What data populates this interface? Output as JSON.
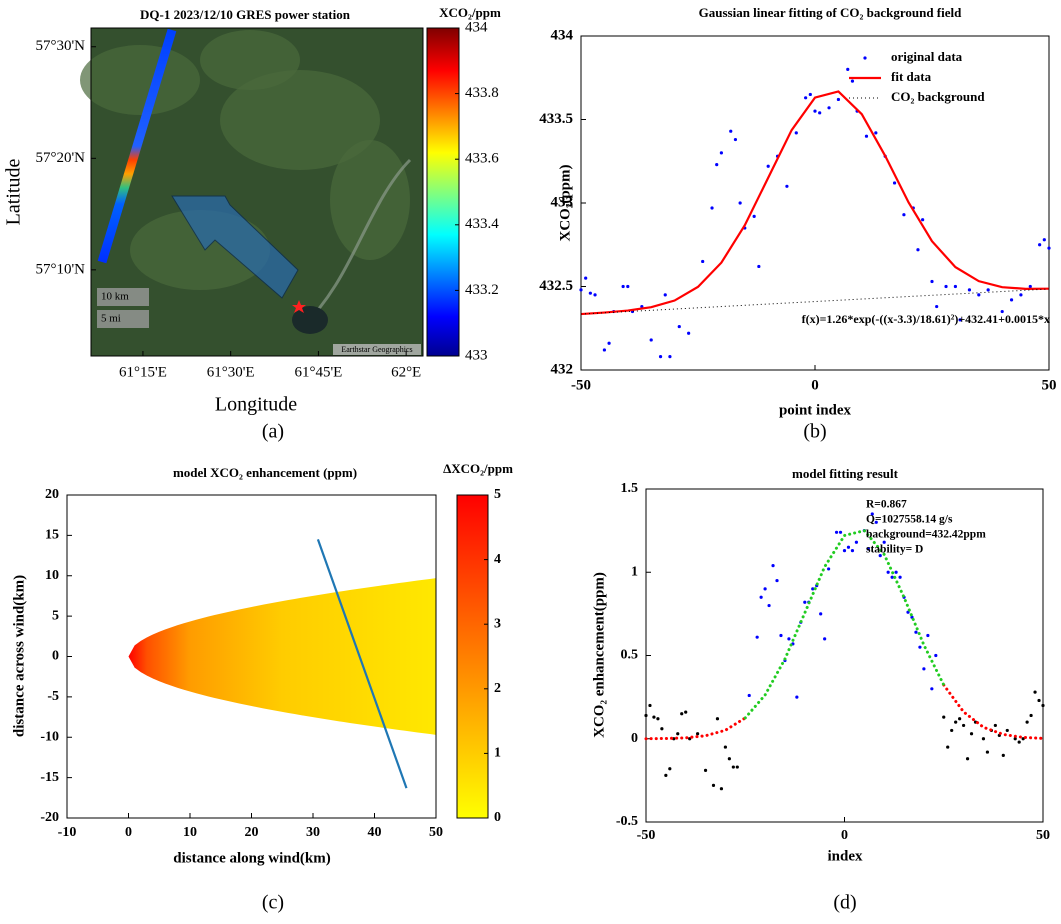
{
  "chart_data": [
    {
      "type": "map",
      "title": "DQ-1 2023/12/10 GRES power station",
      "colorbar_label": "XCO₂/ppm",
      "clim": [
        433,
        434
      ],
      "cticks": [
        433,
        433.2,
        433.4,
        433.6,
        433.8,
        434
      ],
      "colormap": "jet",
      "xlim": [
        61.102,
        62.048
      ],
      "xticks": [
        {
          "value": 61.25,
          "label": "61°15'E"
        },
        {
          "value": 61.5,
          "label": "61°30'E"
        },
        {
          "value": 61.75,
          "label": "61°45'E"
        },
        {
          "value": 62.0,
          "label": "62°E"
        }
      ],
      "ylim": [
        57.038,
        57.528
      ],
      "yticks": [
        {
          "value": 57.1667,
          "label": "57°10'N"
        },
        {
          "value": 57.3333,
          "label": "57°20'N"
        },
        {
          "value": 57.5,
          "label": "57°30'N"
        }
      ],
      "xlabel": "Longitude",
      "ylabel": "Latitude",
      "annotations": [
        "10 km",
        "5 mi",
        "Earthstar Geographics"
      ],
      "panel_label": "(a)"
    },
    {
      "type": "scatter",
      "title": "Gaussian linear fitting of CO₂ background field",
      "xlabel": "point index",
      "ylabel": "XCO₂(ppm)",
      "xlim": [
        -50,
        50
      ],
      "xticks": [
        -50,
        0,
        50
      ],
      "ylim": [
        432,
        434
      ],
      "yticks": [
        432,
        432.5,
        433,
        433.5,
        434
      ],
      "legend": "upper right",
      "annotation": "f(x)=1.26*exp(-((x-3.3)/18.61)²)+432.41+0.0015*x",
      "panel_label": "(b)",
      "series": [
        {
          "name": "original data",
          "color": "#0000ff",
          "style": "points",
          "x": [
            -50,
            -49,
            -48,
            -47,
            -45,
            -44,
            -43,
            -41,
            -40,
            -39,
            -37,
            -35,
            -33,
            -32,
            -31,
            -29,
            -27,
            -24,
            -22,
            -21,
            -20,
            -18,
            -17,
            -16,
            -15,
            -13,
            -12,
            -10,
            -8,
            -6,
            -4,
            -2,
            -1,
            0,
            1,
            3,
            5,
            7,
            8,
            9,
            11,
            13,
            15,
            17,
            19,
            21,
            22,
            23,
            25,
            26,
            28,
            30,
            31,
            33,
            35,
            37,
            40,
            42,
            44,
            46,
            48,
            49,
            50
          ],
          "values": [
            432.48,
            432.55,
            432.46,
            432.45,
            432.12,
            432.16,
            432.35,
            432.5,
            432.5,
            432.35,
            432.38,
            432.18,
            432.08,
            432.45,
            432.08,
            432.26,
            432.22,
            432.65,
            432.97,
            433.23,
            433.3,
            433.43,
            433.38,
            433.0,
            432.85,
            432.92,
            432.62,
            433.22,
            433.28,
            433.1,
            433.42,
            433.63,
            433.65,
            433.55,
            433.54,
            433.57,
            433.62,
            433.8,
            433.73,
            433.55,
            433.4,
            433.42,
            433.28,
            433.12,
            432.93,
            432.97,
            432.72,
            432.9,
            432.53,
            432.38,
            432.5,
            432.5,
            432.3,
            432.48,
            432.45,
            432.48,
            432.35,
            432.42,
            432.45,
            432.5,
            432.75,
            432.78,
            432.73
          ]
        },
        {
          "name": "fit data",
          "color": "#ff0000",
          "style": "line",
          "x": [
            -50,
            -45,
            -40,
            -35,
            -30,
            -25,
            -20,
            -15,
            -10,
            -5,
            0,
            5,
            10,
            15,
            20,
            25,
            30,
            35,
            40,
            45,
            50
          ],
          "values": [
            432.335,
            432.344,
            432.356,
            432.376,
            432.416,
            432.498,
            432.643,
            432.867,
            433.151,
            433.436,
            433.631,
            433.668,
            433.532,
            433.282,
            433.003,
            432.771,
            432.616,
            432.532,
            432.496,
            432.486,
            432.487
          ]
        },
        {
          "name": "CO₂ background",
          "color": "#000000",
          "style": "dotted",
          "x": [
            -50,
            50
          ],
          "values": [
            432.335,
            432.485
          ]
        }
      ]
    },
    {
      "type": "heatmap",
      "title": "model XCO₂ enhancement (ppm)",
      "colorbar_label": "ΔXCO₂/ppm",
      "clim": [
        0,
        5
      ],
      "cticks": [
        0,
        1,
        2,
        3,
        4,
        5
      ],
      "colormap": "autumn",
      "xlabel": "distance along wind(km)",
      "ylabel": "distance across wind(km)",
      "xlim": [
        -10,
        50
      ],
      "xticks": [
        -10,
        0,
        10,
        20,
        30,
        40,
        50
      ],
      "ylim": [
        -20,
        20
      ],
      "yticks": [
        -20,
        -15,
        -10,
        -5,
        0,
        5,
        10,
        15,
        20
      ],
      "panel_label": "(c)",
      "series": [
        {
          "color": "#1f77b4",
          "style": "line",
          "x": [
            30.8,
            45.2
          ],
          "values": [
            14.5,
            -16.3
          ]
        }
      ]
    },
    {
      "type": "scatter",
      "title": "model fitting result",
      "xlabel": "index",
      "ylabel": "XCO₂ enhancement(ppm)",
      "xlim": [
        -50,
        50
      ],
      "xticks": [
        -50,
        0,
        50
      ],
      "ylim": [
        -0.5,
        1.5
      ],
      "yticks": [
        -0.5,
        0,
        0.5,
        1,
        1.5
      ],
      "annotations": [
        "R=0.867",
        "Q=1027558.14 g/s",
        "background=432.42ppm",
        "stability= D"
      ],
      "panel_label": "(d)",
      "series": [
        {
          "color": "#000000",
          "style": "points",
          "x": [
            -50,
            -49,
            -48,
            -47,
            -46,
            -45,
            -44,
            -43,
            -42,
            -41,
            -40,
            -39,
            -37,
            -35,
            -33,
            -32,
            -31,
            -30,
            -29,
            -28,
            -27,
            25,
            26,
            27,
            28,
            29,
            30,
            31,
            32,
            33,
            35,
            36,
            37,
            38,
            39,
            40,
            41,
            43,
            44,
            45,
            46,
            47,
            48,
            49,
            50
          ],
          "values": [
            0.14,
            0.2,
            0.13,
            0.12,
            0.06,
            -0.22,
            -0.18,
            0.0,
            0.03,
            0.15,
            0.16,
            0.0,
            0.03,
            -0.19,
            -0.28,
            0.12,
            -0.3,
            -0.05,
            -0.12,
            -0.17,
            -0.17,
            0.13,
            -0.05,
            0.05,
            0.1,
            0.12,
            0.08,
            -0.12,
            0.03,
            0.1,
            0.0,
            -0.08,
            0.05,
            0.08,
            0.02,
            -0.1,
            0.05,
            0.0,
            -0.02,
            0.0,
            0.1,
            0.14,
            0.28,
            0.23,
            0.2
          ]
        },
        {
          "color": "#0000ff",
          "style": "points",
          "x": [
            -24,
            -22,
            -21,
            -20,
            -19,
            -18,
            -17,
            -16,
            -15,
            -14,
            -13,
            -12,
            -11,
            -10,
            -9,
            -8,
            -7,
            -6,
            -5,
            -4,
            -2,
            -1,
            0,
            1,
            2,
            3,
            5,
            6,
            7,
            8,
            9,
            10,
            11,
            12,
            13,
            14,
            15,
            16,
            17,
            18,
            19,
            20,
            21,
            22,
            23
          ],
          "values": [
            0.26,
            0.61,
            0.85,
            0.9,
            0.8,
            1.04,
            0.95,
            0.62,
            0.47,
            0.6,
            0.57,
            0.25,
            0.7,
            0.82,
            0.82,
            0.9,
            0.92,
            0.75,
            0.6,
            1.02,
            1.24,
            1.24,
            1.13,
            1.15,
            1.13,
            1.18,
            1.25,
            1.14,
            1.35,
            1.3,
            1.1,
            1.18,
            1.0,
            0.97,
            1.0,
            0.97,
            0.85,
            0.76,
            0.73,
            0.64,
            0.55,
            0.42,
            0.62,
            0.3,
            0.5
          ]
        },
        {
          "color": "#ff0000",
          "style": "dots",
          "x": [
            -50,
            -45,
            -40,
            -35,
            -30,
            -25,
            -20,
            -15,
            -10,
            -5,
            0,
            5,
            10,
            15,
            20,
            25,
            30,
            35,
            40,
            45,
            50
          ],
          "values": [
            0.0003,
            0.0015,
            0.0056,
            0.018,
            0.051,
            0.125,
            null,
            null,
            null,
            null,
            null,
            null,
            null,
            null,
            null,
            0.323,
            0.161,
            0.069,
            0.026,
            0.0083,
            0.0023
          ]
        },
        {
          "color": "#22cc22",
          "style": "dots",
          "x": [
            -25,
            -20,
            -15,
            -10,
            -5,
            0,
            5,
            10,
            15,
            20,
            25
          ],
          "values": [
            0.125,
            0.263,
            0.479,
            0.756,
            1.033,
            1.221,
            1.25,
            1.107,
            0.849,
            0.563,
            0.323
          ]
        }
      ]
    }
  ]
}
